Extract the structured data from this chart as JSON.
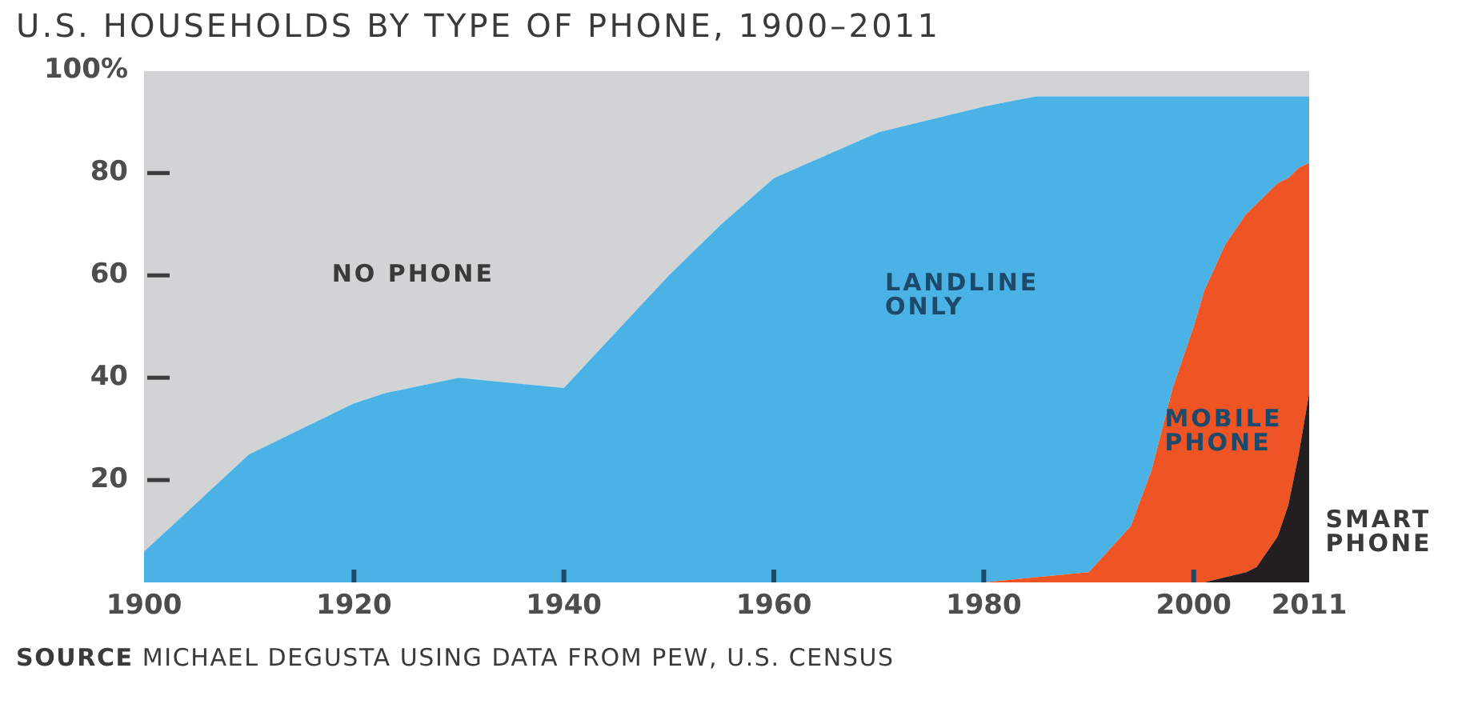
{
  "chart_data": {
    "type": "area",
    "title": "U.S. HOUSEHOLDS BY TYPE OF PHONE, 1900–2011",
    "stacked": true,
    "x": [
      1900,
      1910,
      1920,
      1923,
      1930,
      1940,
      1945,
      1950,
      1955,
      1960,
      1970,
      1980,
      1985,
      1990,
      1994,
      1996,
      1998,
      2000,
      2001,
      2003,
      2005,
      2006,
      2008,
      2009,
      2010,
      2011
    ],
    "xlim": [
      1900,
      2011
    ],
    "xticks": [
      1900,
      1920,
      1940,
      1960,
      1980,
      2000,
      2011
    ],
    "ylim": [
      0,
      100
    ],
    "yticks": [
      20,
      40,
      60,
      80,
      {
        "value": 100,
        "label": "100%"
      }
    ],
    "grid": false,
    "legend": false,
    "series": [
      {
        "name": "SMART PHONE",
        "color": "#231f20",
        "values": [
          0,
          0,
          0,
          0,
          0,
          0,
          0,
          0,
          0,
          0,
          0,
          0,
          0,
          0,
          0,
          0,
          0,
          0,
          0,
          1,
          2,
          3,
          9,
          15,
          25,
          37
        ]
      },
      {
        "name": "MOBILE PHONE",
        "color": "#ee5424",
        "values": [
          0,
          0,
          0,
          0,
          0,
          0,
          0,
          0,
          0,
          0,
          0,
          0,
          1,
          2,
          11,
          22,
          38,
          50,
          57,
          65,
          70,
          71,
          69,
          64,
          56,
          45
        ]
      },
      {
        "name": "LANDLINE ONLY",
        "color": "#4ab2e4",
        "values": [
          6,
          25,
          35,
          37,
          40,
          38,
          49,
          60,
          70,
          79,
          88,
          93,
          94,
          93,
          84,
          73,
          57,
          45,
          38,
          29,
          23,
          21,
          17,
          16,
          14,
          13
        ]
      },
      {
        "name": "NO PHONE",
        "color": "#d1d3d4",
        "values": [
          94,
          75,
          65,
          63,
          60,
          62,
          51,
          40,
          30,
          21,
          12,
          7,
          5,
          5,
          5,
          5,
          5,
          5,
          5,
          5,
          5,
          5,
          5,
          5,
          5,
          5
        ]
      }
    ],
    "annotations": [
      "SOURCE MICHAEL DEGUSTA USING DATA FROM PEW, U.S. CENSUS"
    ]
  }
}
